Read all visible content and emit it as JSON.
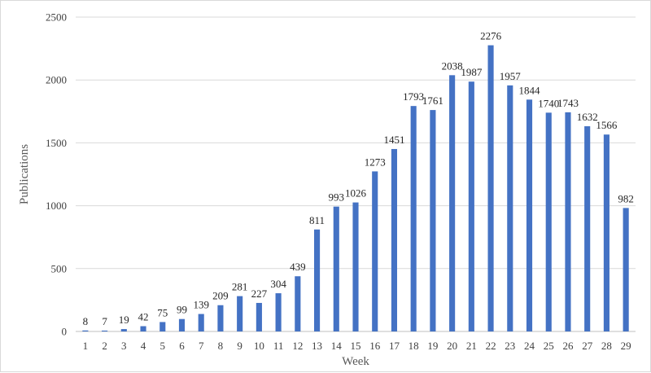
{
  "chart_data": {
    "type": "bar",
    "title": "",
    "xlabel": "Week",
    "ylabel": "Publications",
    "ylim": [
      0,
      2500
    ],
    "yticks": [
      0,
      500,
      1000,
      1500,
      2000,
      2500
    ],
    "grid": true,
    "legend": "none",
    "bar_color": "#4472c4",
    "categories": [
      "1",
      "2",
      "3",
      "4",
      "5",
      "6",
      "7",
      "8",
      "9",
      "10",
      "11",
      "12",
      "13",
      "14",
      "15",
      "16",
      "17",
      "18",
      "19",
      "20",
      "21",
      "22",
      "23",
      "24",
      "25",
      "26",
      "27",
      "28",
      "29"
    ],
    "values": [
      8,
      7,
      19,
      42,
      75,
      99,
      139,
      209,
      281,
      227,
      304,
      439,
      811,
      993,
      1026,
      1273,
      1451,
      1793,
      1761,
      2038,
      1987,
      2276,
      1957,
      1844,
      1740,
      1743,
      1632,
      1566,
      982
    ]
  }
}
